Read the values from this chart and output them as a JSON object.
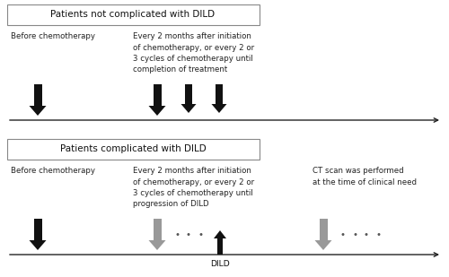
{
  "bg_color": "#ffffff",
  "box_color": "#ffffff",
  "box_edge_color": "#888888",
  "arrow_black": "#111111",
  "arrow_gray": "#999999",
  "dot_color": "#555555",
  "line_color": "#222222",
  "title1": "Patients not complicated with DILD",
  "title2": "Patients complicated with DILD",
  "label_before": "Before chemotherapy",
  "label_every1": "Every 2 months after initiation\nof chemotherapy, or every 2 or\n3 cycles of chemotherapy until\ncompletion of treatment",
  "label_every2": "Every 2 months after initiation\nof chemotherapy, or every 2 or\n3 cycles of chemotherapy until\nprogression of DILD",
  "label_ct": "CT scan was performed\nat the time of clinical need",
  "label_dild": "DILD",
  "fontsize_title": 7.5,
  "fontsize_label": 6.2,
  "fontsize_dot": 7.5
}
